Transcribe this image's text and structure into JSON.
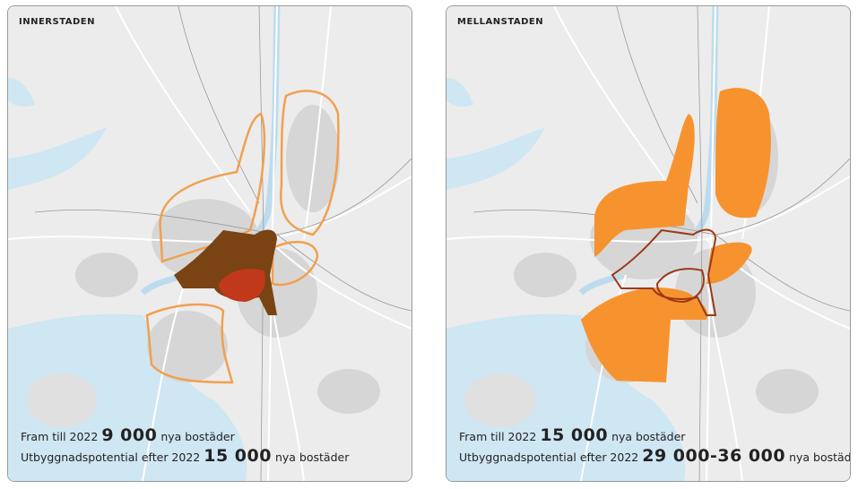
{
  "panels": [
    {
      "title": "INNERSTADEN",
      "lines": [
        {
          "prefix": "Fram till 2022",
          "number": "9 000",
          "suffix": "nya bostäder"
        },
        {
          "prefix": "Utbyggnadspotential efter 2022",
          "number": "15 000",
          "suffix": "nya bostäder"
        }
      ]
    },
    {
      "title": "MELLANSTADEN",
      "lines": [
        {
          "prefix": "Fram till 2022",
          "number": "15 000",
          "suffix": "nya bostäder"
        },
        {
          "prefix": "Utbyggnadspotential efter 2022",
          "number": "29 000-36 000",
          "suffix": "nya bostäder"
        }
      ]
    }
  ]
}
